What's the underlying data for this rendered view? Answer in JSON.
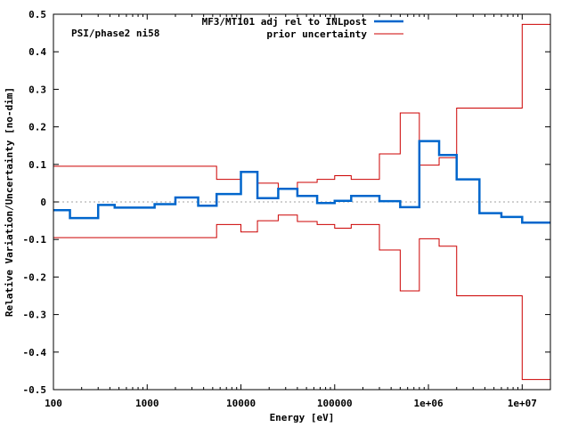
{
  "chart_data": {
    "type": "line",
    "title": "",
    "annotation": "PSI/phase2 ni58",
    "xlabel": "Energy [eV]",
    "ylabel": "Relative Variation/Uncertainty [no-dim]",
    "xscale": "log",
    "xlim": [
      100,
      20000000
    ],
    "ylim": [
      -0.5,
      0.5
    ],
    "x_tick_values": [
      100,
      1000,
      10000,
      100000,
      1000000,
      10000000
    ],
    "x_tick_labels": [
      "100",
      "1000",
      "10000",
      "100000",
      "1e+06",
      "1e+07"
    ],
    "y_tick_values": [
      -0.5,
      -0.4,
      -0.3,
      -0.2,
      -0.1,
      0,
      0.1,
      0.2,
      0.3,
      0.4,
      0.5
    ],
    "y_tick_labels": [
      "-0.5",
      "-0.4",
      "-0.3",
      "-0.2",
      "-0.1",
      "0",
      "0.1",
      "0.2",
      "0.3",
      "0.4",
      "0.5"
    ],
    "legend_position": "top-right",
    "zero_line": true,
    "series": [
      {
        "name": "MF3/MT101 adj rel to INLpost",
        "color": "#0066cc",
        "style": "step",
        "edges": [
          100,
          150,
          300,
          450,
          1200,
          2000,
          3500,
          5500,
          10000,
          15000,
          25000,
          40000,
          65000,
          100000,
          150000,
          300000,
          500000,
          800000,
          1300000,
          2000000,
          3500000,
          6000000,
          10000000,
          20000000
        ],
        "values": [
          -0.022,
          -0.043,
          -0.008,
          -0.015,
          -0.006,
          0.012,
          -0.01,
          0.021,
          0.08,
          0.01,
          0.035,
          0.016,
          -0.003,
          0.003,
          0.016,
          0.002,
          -0.014,
          0.162,
          0.125,
          0.06,
          -0.03,
          -0.04,
          -0.055
        ]
      },
      {
        "name": "prior uncertainty",
        "color": "#cc0000",
        "style": "step",
        "edges": [
          100,
          5500,
          10000,
          15000,
          25000,
          40000,
          65000,
          100000,
          150000,
          300000,
          500000,
          800000,
          1300000,
          2000000,
          10000000,
          20000000
        ],
        "values": [
          0.095,
          0.06,
          0.08,
          0.05,
          0.035,
          0.052,
          0.06,
          0.07,
          0.06,
          0.128,
          0.237,
          0.098,
          0.118,
          0.25,
          0.473
        ],
        "symmetric": true
      }
    ]
  }
}
